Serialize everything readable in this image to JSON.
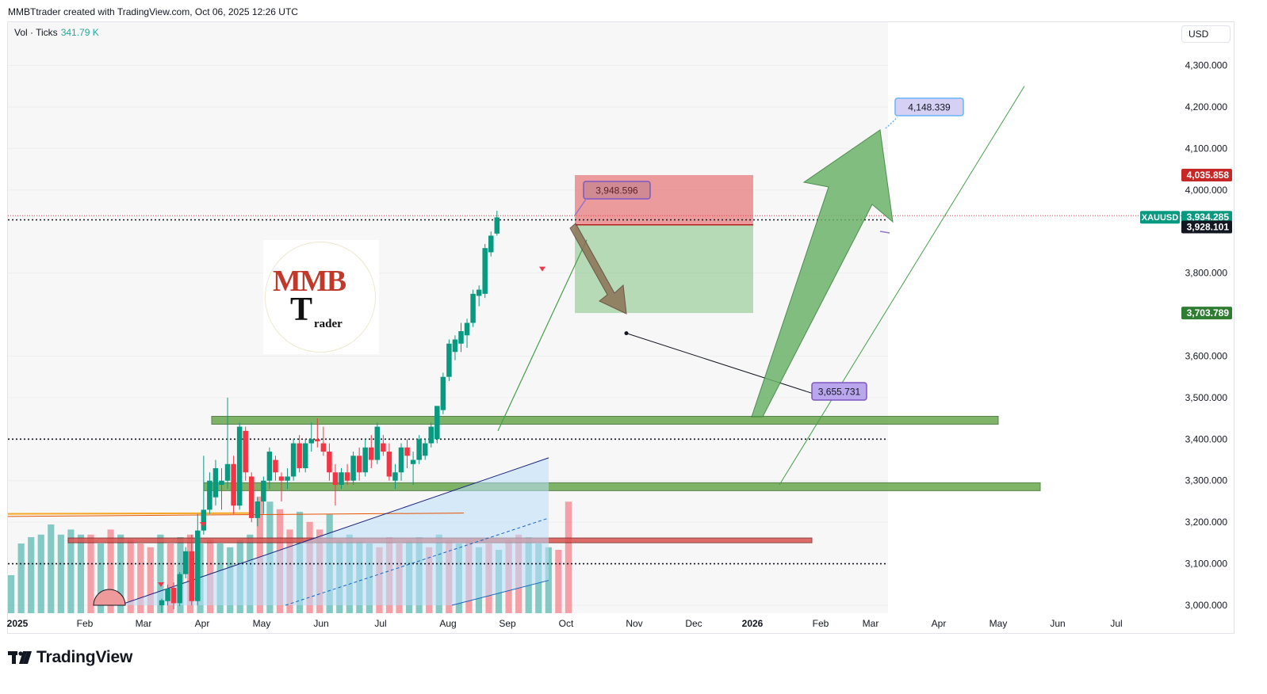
{
  "header": {
    "credit": "MMBTtrader created with TradingView.com, Oct 06, 2025 12:26 UTC"
  },
  "legend": {
    "label": "Vol · Ticks",
    "value": "341.79 K"
  },
  "currency_button": "USD",
  "footer": {
    "brand": "TradingView",
    "logo_icon": "tradingview-logo-icon"
  },
  "logo": {
    "text_mmb": "MMB",
    "text_t": "T",
    "text_rader": "rader",
    "icon": "mmb-trader-logo"
  },
  "colors": {
    "up": "#26a69a",
    "up_candle": "#089981",
    "down": "#f23645",
    "zone_green": "#6aa84f",
    "zone_red": "#d9534f",
    "arrow_green": "#6db36a",
    "arrow_brown": "#8b7355",
    "label_purple": "#b39ddb",
    "label_blue": "#bbdefb"
  },
  "chart_data": {
    "type": "candlestick",
    "symbol": "XAUUSD",
    "y_axis": {
      "ticks": [
        3000,
        3100,
        3200,
        3300,
        3400,
        3500,
        3600,
        3700,
        3800,
        3900,
        4000,
        4100,
        4200,
        4300
      ],
      "tick_labels": [
        "3,000.000",
        "3,100.000",
        "3,200.000",
        "3,300.000",
        "3,400.000",
        "3,600.000",
        "3,800.000",
        "4,000.000",
        "4,100.000",
        "4,200.000",
        "4,300.000",
        "3,500.000"
      ],
      "ylim": [
        2980,
        4400
      ]
    },
    "x_axis": {
      "labels": [
        "2025",
        "Feb",
        "Mar",
        "Apr",
        "May",
        "Jun",
        "Jul",
        "Aug",
        "Sep",
        "Oct",
        "Nov",
        "Dec",
        "2026",
        "Feb",
        "Mar",
        "Apr",
        "May",
        "Jun",
        "Jul"
      ],
      "bold": [
        "2025",
        "2026"
      ]
    },
    "price_labels": [
      {
        "text": "4,035.858",
        "value": 4035.858,
        "bg": "#c62828"
      },
      {
        "text": "XAUUSD",
        "value": 3934.285,
        "bg": "#089981",
        "is_symbol": true
      },
      {
        "text": "3,934.285",
        "value": 3934.285,
        "bg": "#089981"
      },
      {
        "text": "3,928.101",
        "value": 3928.101,
        "bg": "#131722"
      },
      {
        "text": "3,703.789",
        "value": 3703.789,
        "bg": "#2e7d32"
      }
    ],
    "callouts": [
      {
        "text": "3,948.596",
        "value": 3948.596,
        "style": "purple"
      },
      {
        "text": "3,655.731",
        "value": 3655.731,
        "style": "purple"
      },
      {
        "text": "4,148.339",
        "value": 4148.339,
        "style": "blue"
      }
    ],
    "candles": [
      {
        "o": 3000,
        "h": 3016,
        "l": 2982,
        "c": 3012
      },
      {
        "o": 3010,
        "h": 3050,
        "l": 3000,
        "c": 3040
      },
      {
        "o": 3042,
        "h": 3055,
        "l": 2990,
        "c": 3005
      },
      {
        "o": 3005,
        "h": 3080,
        "l": 2998,
        "c": 3075
      },
      {
        "o": 3075,
        "h": 3140,
        "l": 3065,
        "c": 3130
      },
      {
        "o": 3130,
        "h": 3170,
        "l": 3000,
        "c": 3010
      },
      {
        "o": 3010,
        "h": 3220,
        "l": 3000,
        "c": 3180
      },
      {
        "o": 3180,
        "h": 3360,
        "l": 3170,
        "c": 3230
      },
      {
        "o": 3230,
        "h": 3320,
        "l": 3220,
        "c": 3300
      },
      {
        "o": 3260,
        "h": 3350,
        "l": 3240,
        "c": 3330
      },
      {
        "o": 3290,
        "h": 3330,
        "l": 3230,
        "c": 3300
      },
      {
        "o": 3300,
        "h": 3500,
        "l": 3280,
        "c": 3340
      },
      {
        "o": 3340,
        "h": 3360,
        "l": 3220,
        "c": 3240
      },
      {
        "o": 3240,
        "h": 3440,
        "l": 3230,
        "c": 3430
      },
      {
        "o": 3420,
        "h": 3430,
        "l": 3300,
        "c": 3320
      },
      {
        "o": 3310,
        "h": 3320,
        "l": 3200,
        "c": 3210
      },
      {
        "o": 3210,
        "h": 3260,
        "l": 3190,
        "c": 3250
      },
      {
        "o": 3250,
        "h": 3310,
        "l": 3220,
        "c": 3300
      },
      {
        "o": 3300,
        "h": 3380,
        "l": 3280,
        "c": 3370
      },
      {
        "o": 3350,
        "h": 3360,
        "l": 3300,
        "c": 3320
      },
      {
        "o": 3310,
        "h": 3320,
        "l": 3250,
        "c": 3300
      },
      {
        "o": 3300,
        "h": 3330,
        "l": 3280,
        "c": 3310
      },
      {
        "o": 3310,
        "h": 3400,
        "l": 3300,
        "c": 3390
      },
      {
        "o": 3390,
        "h": 3410,
        "l": 3320,
        "c": 3330
      },
      {
        "o": 3330,
        "h": 3400,
        "l": 3320,
        "c": 3390
      },
      {
        "o": 3390,
        "h": 3440,
        "l": 3370,
        "c": 3400
      },
      {
        "o": 3400,
        "h": 3450,
        "l": 3380,
        "c": 3395
      },
      {
        "o": 3390,
        "h": 3430,
        "l": 3360,
        "c": 3370
      },
      {
        "o": 3370,
        "h": 3390,
        "l": 3300,
        "c": 3320
      },
      {
        "o": 3320,
        "h": 3340,
        "l": 3240,
        "c": 3290
      },
      {
        "o": 3290,
        "h": 3330,
        "l": 3280,
        "c": 3320
      },
      {
        "o": 3320,
        "h": 3340,
        "l": 3290,
        "c": 3300
      },
      {
        "o": 3300,
        "h": 3370,
        "l": 3290,
        "c": 3360
      },
      {
        "o": 3360,
        "h": 3380,
        "l": 3300,
        "c": 3320
      },
      {
        "o": 3320,
        "h": 3400,
        "l": 3310,
        "c": 3380
      },
      {
        "o": 3380,
        "h": 3410,
        "l": 3330,
        "c": 3350
      },
      {
        "o": 3350,
        "h": 3440,
        "l": 3340,
        "c": 3430
      },
      {
        "o": 3390,
        "h": 3410,
        "l": 3360,
        "c": 3370
      },
      {
        "o": 3370,
        "h": 3390,
        "l": 3300,
        "c": 3310
      },
      {
        "o": 3300,
        "h": 3340,
        "l": 3280,
        "c": 3320
      },
      {
        "o": 3320,
        "h": 3390,
        "l": 3300,
        "c": 3380
      },
      {
        "o": 3380,
        "h": 3400,
        "l": 3330,
        "c": 3360
      },
      {
        "o": 3340,
        "h": 3370,
        "l": 3290,
        "c": 3350
      },
      {
        "o": 3350,
        "h": 3410,
        "l": 3340,
        "c": 3400
      },
      {
        "o": 3360,
        "h": 3400,
        "l": 3350,
        "c": 3390
      },
      {
        "o": 3390,
        "h": 3440,
        "l": 3380,
        "c": 3430
      },
      {
        "o": 3400,
        "h": 3480,
        "l": 3390,
        "c": 3480
      },
      {
        "o": 3470,
        "h": 3560,
        "l": 3460,
        "c": 3550
      },
      {
        "o": 3550,
        "h": 3640,
        "l": 3540,
        "c": 3630
      },
      {
        "o": 3610,
        "h": 3650,
        "l": 3590,
        "c": 3640
      },
      {
        "o": 3630,
        "h": 3680,
        "l": 3610,
        "c": 3660
      },
      {
        "o": 3650,
        "h": 3690,
        "l": 3620,
        "c": 3680
      },
      {
        "o": 3680,
        "h": 3760,
        "l": 3670,
        "c": 3750
      },
      {
        "o": 3745,
        "h": 3770,
        "l": 3720,
        "c": 3760
      },
      {
        "o": 3750,
        "h": 3870,
        "l": 3740,
        "c": 3860
      },
      {
        "o": 3850,
        "h": 3900,
        "l": 3840,
        "c": 3890
      },
      {
        "o": 3895,
        "h": 3950,
        "l": 3890,
        "c": 3934
      }
    ],
    "volume": [
      {
        "v": 0.3,
        "up": true
      },
      {
        "v": 0.55,
        "up": true
      },
      {
        "v": 0.6,
        "up": true
      },
      {
        "v": 0.62,
        "up": true
      },
      {
        "v": 0.7,
        "up": true
      },
      {
        "v": 0.62,
        "up": true
      },
      {
        "v": 0.66,
        "up": true
      },
      {
        "v": 0.62,
        "up": true
      },
      {
        "v": 0.62,
        "up": false
      },
      {
        "v": 0.55,
        "up": true
      },
      {
        "v": 0.66,
        "up": false
      },
      {
        "v": 0.62,
        "up": true
      },
      {
        "v": 0.58,
        "up": false
      },
      {
        "v": 0.55,
        "up": false
      },
      {
        "v": 0.52,
        "up": false
      },
      {
        "v": 0.62,
        "up": true
      },
      {
        "v": 0.55,
        "up": false
      },
      {
        "v": 0.6,
        "up": true
      },
      {
        "v": 0.62,
        "up": false
      },
      {
        "v": 0.55,
        "up": true
      },
      {
        "v": 0.58,
        "up": false
      },
      {
        "v": 0.55,
        "up": true
      },
      {
        "v": 0.52,
        "up": true
      },
      {
        "v": 0.58,
        "up": true
      },
      {
        "v": 0.62,
        "up": true
      },
      {
        "v": 0.92,
        "up": false
      },
      {
        "v": 0.88,
        "up": true
      },
      {
        "v": 0.82,
        "up": false
      },
      {
        "v": 0.66,
        "up": false
      },
      {
        "v": 0.8,
        "up": true
      },
      {
        "v": 0.72,
        "up": false
      },
      {
        "v": 0.66,
        "up": false
      },
      {
        "v": 0.78,
        "up": true
      },
      {
        "v": 0.58,
        "up": true
      },
      {
        "v": 0.62,
        "up": true
      },
      {
        "v": 0.58,
        "up": true
      },
      {
        "v": 0.55,
        "up": true
      },
      {
        "v": 0.52,
        "up": false
      },
      {
        "v": 0.6,
        "up": false
      },
      {
        "v": 0.55,
        "up": false
      },
      {
        "v": 0.58,
        "up": true
      },
      {
        "v": 0.6,
        "up": true
      },
      {
        "v": 0.52,
        "up": false
      },
      {
        "v": 0.62,
        "up": true
      },
      {
        "v": 0.58,
        "up": false
      },
      {
        "v": 0.55,
        "up": true
      },
      {
        "v": 0.58,
        "up": false
      },
      {
        "v": 0.52,
        "up": true
      },
      {
        "v": 0.55,
        "up": false
      },
      {
        "v": 0.5,
        "up": true
      },
      {
        "v": 0.58,
        "up": false
      },
      {
        "v": 0.62,
        "up": false
      },
      {
        "v": 0.6,
        "up": true
      },
      {
        "v": 0.55,
        "up": true
      },
      {
        "v": 0.52,
        "up": true
      },
      {
        "v": 0.5,
        "up": false
      },
      {
        "v": 0.88,
        "up": false
      }
    ]
  }
}
